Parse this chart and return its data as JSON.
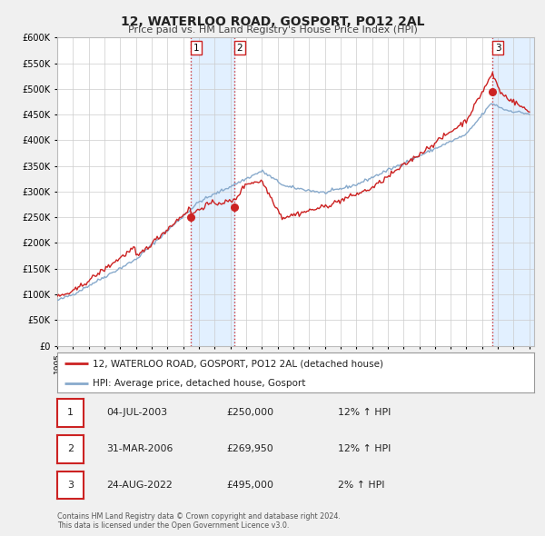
{
  "title": "12, WATERLOO ROAD, GOSPORT, PO12 2AL",
  "subtitle": "Price paid vs. HM Land Registry's House Price Index (HPI)",
  "ylim": [
    0,
    600000
  ],
  "yticks": [
    0,
    50000,
    100000,
    150000,
    200000,
    250000,
    300000,
    350000,
    400000,
    450000,
    500000,
    550000,
    600000
  ],
  "xlim_start": 1995.0,
  "xlim_end": 2025.3,
  "sale_color": "#cc2222",
  "hpi_color": "#88aacc",
  "bg_color": "#f0f0f0",
  "plot_bg": "#ffffff",
  "grid_color": "#cccccc",
  "sales": [
    {
      "year": 2003.5,
      "price": 250000,
      "label": "1"
    },
    {
      "year": 2006.25,
      "price": 269950,
      "label": "2"
    },
    {
      "year": 2022.65,
      "price": 495000,
      "label": "3"
    }
  ],
  "vline_color": "#cc2222",
  "shade_color": "#ddeeff",
  "legend_entries": [
    "12, WATERLOO ROAD, GOSPORT, PO12 2AL (detached house)",
    "HPI: Average price, detached house, Gosport"
  ],
  "table_rows": [
    {
      "num": "1",
      "date": "04-JUL-2003",
      "price": "£250,000",
      "hpi": "12% ↑ HPI"
    },
    {
      "num": "2",
      "date": "31-MAR-2006",
      "price": "£269,950",
      "hpi": "12% ↑ HPI"
    },
    {
      "num": "3",
      "date": "24-AUG-2022",
      "price": "£495,000",
      "hpi": "2% ↑ HPI"
    }
  ],
  "footer": "Contains HM Land Registry data © Crown copyright and database right 2024.\nThis data is licensed under the Open Government Licence v3.0."
}
